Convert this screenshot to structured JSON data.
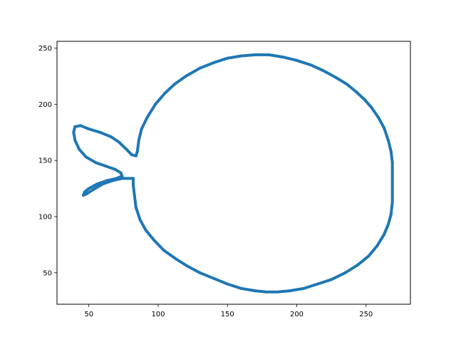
{
  "chart_data": {
    "type": "line",
    "title": "",
    "xlabel": "",
    "ylabel": "",
    "xlim": [
      27,
      282
    ],
    "ylim": [
      22,
      256
    ],
    "xticks": [
      50,
      100,
      150,
      200,
      250
    ],
    "yticks": [
      50,
      100,
      150,
      200,
      250
    ],
    "grid": false,
    "series": [
      {
        "color": "#1f77b4",
        "points": [
          [
            82,
            134
          ],
          [
            82,
            128
          ],
          [
            83,
            118
          ],
          [
            84,
            108
          ],
          [
            87,
            97
          ],
          [
            91,
            88
          ],
          [
            97,
            79
          ],
          [
            104,
            70
          ],
          [
            112,
            63
          ],
          [
            121,
            56
          ],
          [
            130,
            50
          ],
          [
            140,
            45
          ],
          [
            150,
            40
          ],
          [
            160,
            36
          ],
          [
            170,
            34
          ],
          [
            178,
            33
          ],
          [
            186,
            33
          ],
          [
            195,
            34
          ],
          [
            205,
            36
          ],
          [
            215,
            40
          ],
          [
            225,
            44
          ],
          [
            235,
            50
          ],
          [
            244,
            57
          ],
          [
            252,
            65
          ],
          [
            258,
            74
          ],
          [
            263,
            84
          ],
          [
            266,
            93
          ],
          [
            268,
            102
          ],
          [
            269,
            113
          ],
          [
            269,
            124
          ],
          [
            269,
            136
          ],
          [
            269,
            148
          ],
          [
            268,
            158
          ],
          [
            266,
            168
          ],
          [
            263,
            179
          ],
          [
            259,
            188
          ],
          [
            254,
            197
          ],
          [
            249,
            204
          ],
          [
            243,
            211
          ],
          [
            236,
            218
          ],
          [
            228,
            224
          ],
          [
            219,
            230
          ],
          [
            210,
            235
          ],
          [
            200,
            239
          ],
          [
            190,
            242
          ],
          [
            180,
            244
          ],
          [
            170,
            244
          ],
          [
            160,
            243
          ],
          [
            150,
            241
          ],
          [
            140,
            237
          ],
          [
            130,
            232
          ],
          [
            120,
            225
          ],
          [
            112,
            218
          ],
          [
            105,
            210
          ],
          [
            98,
            200
          ],
          [
            92,
            188
          ],
          [
            88,
            178
          ],
          [
            86,
            168
          ],
          [
            85,
            158
          ],
          [
            84,
            154
          ],
          [
            81,
            155
          ],
          [
            77,
            160
          ],
          [
            72,
            166
          ],
          [
            66,
            171
          ],
          [
            58,
            175
          ],
          [
            50,
            178
          ],
          [
            44,
            181
          ],
          [
            40,
            180
          ],
          [
            39,
            175
          ],
          [
            40,
            168
          ],
          [
            43,
            160
          ],
          [
            48,
            153
          ],
          [
            55,
            148
          ],
          [
            62,
            145
          ],
          [
            69,
            142
          ],
          [
            73,
            139
          ],
          [
            74,
            136
          ],
          [
            70,
            134
          ],
          [
            63,
            132
          ],
          [
            56,
            129
          ],
          [
            50,
            125
          ],
          [
            47,
            122
          ],
          [
            46,
            119
          ],
          [
            48,
            120
          ],
          [
            53,
            124
          ],
          [
            60,
            129
          ],
          [
            67,
            132
          ],
          [
            74,
            134
          ],
          [
            82,
            134
          ]
        ]
      }
    ]
  }
}
